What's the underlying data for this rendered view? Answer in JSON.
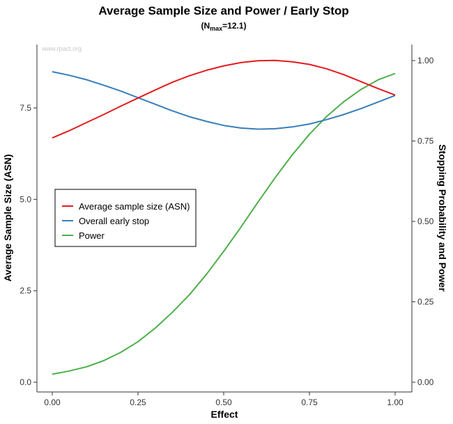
{
  "chart_data": {
    "type": "line",
    "title": "Average Sample Size and Power / Early Stop",
    "subtitle": {
      "prefix": "(N",
      "sub": "max",
      "suffix": "=12.1)"
    },
    "watermark": "www.rpact.org",
    "xlabel": "Effect",
    "ylabel_left": "Average Sample Size (ASN)",
    "ylabel_right": "Stopping Probability and Power",
    "xlim": [
      0,
      1
    ],
    "ylim_left": [
      0,
      9.5
    ],
    "ylim_right": [
      0,
      1.05
    ],
    "x_ticks": [
      "0.00",
      "0.25",
      "0.50",
      "0.75",
      "1.00"
    ],
    "y_left_ticks": [
      "0.0",
      "2.5",
      "5.0",
      "7.5"
    ],
    "y_right_ticks": [
      "0.00",
      "0.25",
      "0.50",
      "0.75",
      "1.00"
    ],
    "legend_position": "left-center",
    "x": [
      0,
      0.05,
      0.1,
      0.15,
      0.2,
      0.25,
      0.3,
      0.35,
      0.4,
      0.45,
      0.5,
      0.55,
      0.6,
      0.65,
      0.7,
      0.75,
      0.8,
      0.85,
      0.9,
      0.95,
      1.0
    ],
    "series": [
      {
        "name": "Average sample size (ASN)",
        "axis": "left",
        "color": "#e41a1c",
        "values": [
          6.68,
          6.88,
          7.1,
          7.32,
          7.55,
          7.77,
          7.99,
          8.2,
          8.38,
          8.53,
          8.65,
          8.74,
          8.79,
          8.8,
          8.76,
          8.69,
          8.57,
          8.41,
          8.22,
          8.03,
          7.85
        ]
      },
      {
        "name": "Overall early stop",
        "axis": "left",
        "color": "#377eb8",
        "values": [
          8.49,
          8.39,
          8.27,
          8.12,
          7.96,
          7.78,
          7.6,
          7.42,
          7.26,
          7.13,
          7.02,
          6.95,
          6.92,
          6.93,
          6.98,
          7.06,
          7.18,
          7.32,
          7.48,
          7.66,
          7.84
        ]
      },
      {
        "name": "Power",
        "axis": "right",
        "color": "#4daf4a",
        "values": [
          0.025,
          0.035,
          0.048,
          0.067,
          0.093,
          0.126,
          0.168,
          0.217,
          0.272,
          0.336,
          0.407,
          0.482,
          0.56,
          0.636,
          0.707,
          0.771,
          0.826,
          0.872,
          0.91,
          0.94,
          0.96
        ]
      }
    ]
  }
}
